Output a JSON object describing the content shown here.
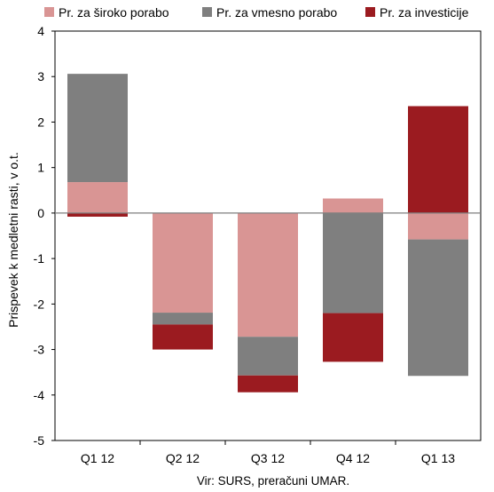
{
  "chart_data": {
    "type": "bar",
    "stacked": true,
    "categories": [
      "Q1 12",
      "Q2 12",
      "Q3 12",
      "Q4 12",
      "Q1 13"
    ],
    "series": [
      {
        "name": "Pr. za široko porabo",
        "color": "#d99594",
        "values": [
          0.68,
          -2.19,
          -2.72,
          0.32,
          -0.58
        ]
      },
      {
        "name": "Pr. za vmesno porabo",
        "color": "#7f7f7f",
        "values": [
          2.38,
          -0.26,
          -0.85,
          -2.2,
          -3.0
        ]
      },
      {
        "name": "Pr. za investicije",
        "color": "#9b1b20",
        "values": [
          -0.08,
          -0.55,
          -0.37,
          -1.07,
          2.35
        ]
      }
    ],
    "ylabel": "Prispevek k medletni rasti, v o.t.",
    "xlabel": "",
    "ylim": [
      -5,
      4
    ],
    "yticks": [
      4,
      3,
      2,
      1,
      0,
      -1,
      -2,
      -3,
      -4,
      -5
    ],
    "grid": false,
    "legend": "top",
    "source": "Vir: SURS, preračuni UMAR."
  }
}
